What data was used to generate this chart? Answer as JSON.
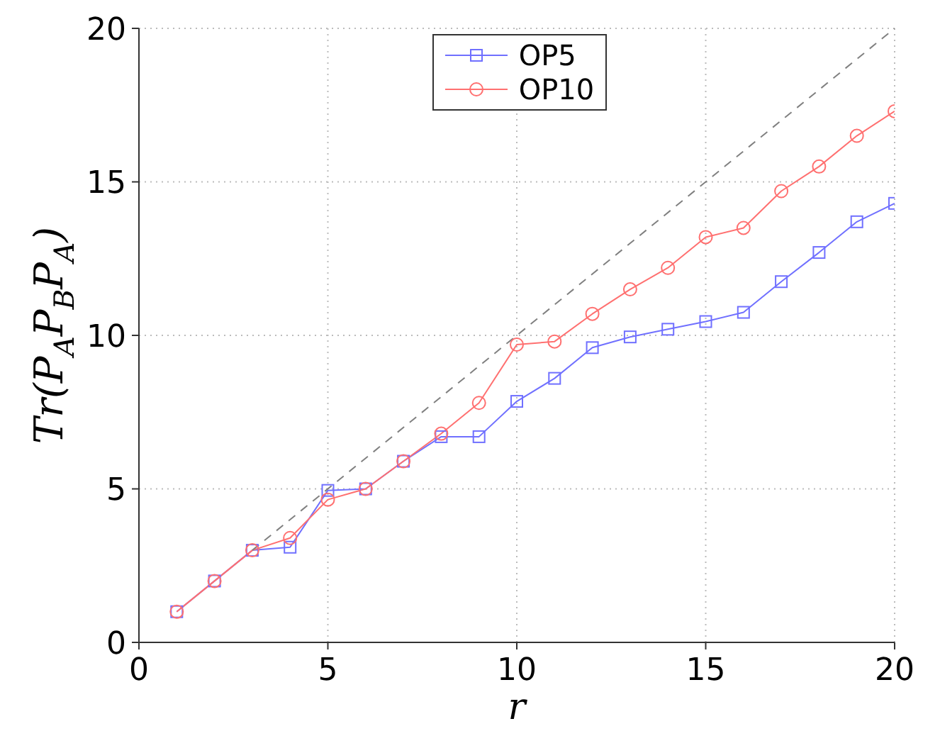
{
  "chart_data": {
    "type": "line",
    "xlabel": "r",
    "ylabel": "Tr(P$_{A}$P$_{B}$P$_{A}$)",
    "x": [
      1,
      2,
      3,
      4,
      5,
      6,
      7,
      8,
      9,
      10,
      11,
      12,
      13,
      14,
      15,
      16,
      17,
      18,
      19,
      20
    ],
    "series": [
      {
        "name": "OP5",
        "color": "#7070ff",
        "marker": "square",
        "values": [
          1,
          2,
          3,
          3.1,
          4.95,
          5,
          5.9,
          6.7,
          6.7,
          7.85,
          8.6,
          9.6,
          9.95,
          10.2,
          10.45,
          10.75,
          11.75,
          12.7,
          13.7,
          14.3
        ]
      },
      {
        "name": "OP10",
        "color": "#ff7070",
        "marker": "circle",
        "values": [
          1,
          2,
          3,
          3.4,
          4.65,
          5,
          5.9,
          6.8,
          7.8,
          9.7,
          9.8,
          10.7,
          11.5,
          12.2,
          13.2,
          13.5,
          14.7,
          15.5,
          16.5,
          17.3
        ]
      },
      {
        "type": "line",
        "color": "#808080",
        "marker": "none",
        "line_style": "dashed",
        "x": [
          3,
          20
        ],
        "values": [
          3,
          20
        ]
      }
    ],
    "xlim": [
      0,
      20
    ],
    "xticks": [
      0,
      5,
      10,
      15,
      20
    ],
    "ylim": [
      0,
      20
    ],
    "yticks": [
      0,
      5,
      10,
      15,
      20
    ],
    "grid": true,
    "legend": "top"
  }
}
